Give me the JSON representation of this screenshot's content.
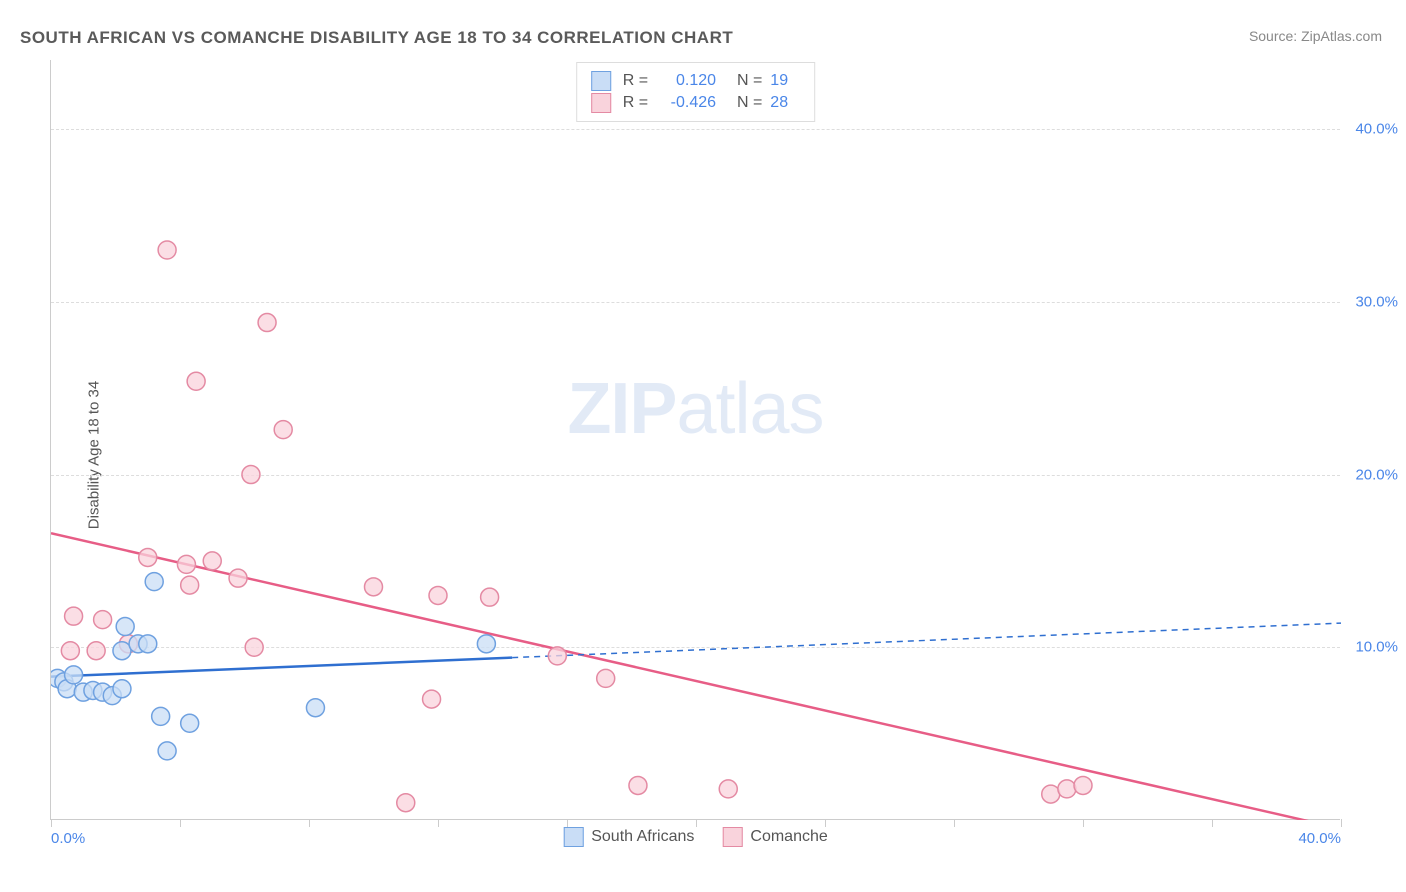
{
  "title": "SOUTH AFRICAN VS COMANCHE DISABILITY AGE 18 TO 34 CORRELATION CHART",
  "source": "Source: ZipAtlas.com",
  "y_axis_label": "Disability Age 18 to 34",
  "watermark_bold": "ZIP",
  "watermark_light": "atlas",
  "chart": {
    "type": "scatter",
    "xlim": [
      0,
      40
    ],
    "ylim": [
      0,
      44
    ],
    "x_ticks": [
      0,
      4,
      8,
      12,
      16,
      20,
      24,
      28,
      32,
      36,
      40
    ],
    "x_tick_labels_shown": {
      "0": "0.0%",
      "40": "40.0%"
    },
    "y_gridlines": [
      10,
      20,
      30,
      40
    ],
    "y_tick_labels": {
      "10": "10.0%",
      "20": "20.0%",
      "30": "30.0%",
      "40": "40.0%"
    },
    "background_color": "#ffffff",
    "grid_color": "#dddddd",
    "axis_color": "#cccccc",
    "marker_radius": 9,
    "marker_stroke_width": 1.5,
    "line_width_solid": 2.5,
    "line_dash": "6,5"
  },
  "series": {
    "south_africans": {
      "label": "South Africans",
      "fill": "#c9ddf6",
      "stroke": "#6fa1e0",
      "line_color": "#2f6fd0",
      "R": "0.120",
      "N": "19",
      "points": [
        [
          0.2,
          8.2
        ],
        [
          0.4,
          8.0
        ],
        [
          0.5,
          7.6
        ],
        [
          0.7,
          8.4
        ],
        [
          1.0,
          7.4
        ],
        [
          1.3,
          7.5
        ],
        [
          1.6,
          7.4
        ],
        [
          1.9,
          7.2
        ],
        [
          2.2,
          7.6
        ],
        [
          2.2,
          9.8
        ],
        [
          2.3,
          11.2
        ],
        [
          2.7,
          10.2
        ],
        [
          3.0,
          10.2
        ],
        [
          3.2,
          13.8
        ],
        [
          3.4,
          6.0
        ],
        [
          3.6,
          4.0
        ],
        [
          4.3,
          5.6
        ],
        [
          8.2,
          6.5
        ],
        [
          13.5,
          10.2
        ]
      ],
      "trend": {
        "x1": 0,
        "y1": 8.3,
        "x2_solid": 14.3,
        "y2_solid": 9.4,
        "x2_dash": 40,
        "y2_dash": 11.4
      }
    },
    "comanche": {
      "label": "Comanche",
      "fill": "#f9d3dc",
      "stroke": "#e48aa3",
      "line_color": "#e75d86",
      "R": "-0.426",
      "N": "28",
      "points": [
        [
          0.6,
          9.8
        ],
        [
          0.7,
          11.8
        ],
        [
          1.4,
          9.8
        ],
        [
          1.6,
          11.6
        ],
        [
          2.4,
          10.2
        ],
        [
          3.0,
          15.2
        ],
        [
          3.6,
          33.0
        ],
        [
          4.2,
          14.8
        ],
        [
          4.3,
          13.6
        ],
        [
          4.5,
          25.4
        ],
        [
          5.0,
          15.0
        ],
        [
          5.8,
          14.0
        ],
        [
          6.2,
          20.0
        ],
        [
          6.3,
          10.0
        ],
        [
          6.7,
          28.8
        ],
        [
          7.2,
          22.6
        ],
        [
          10.0,
          13.5
        ],
        [
          11.0,
          1.0
        ],
        [
          11.8,
          7.0
        ],
        [
          12.0,
          13.0
        ],
        [
          13.6,
          12.9
        ],
        [
          15.7,
          9.5
        ],
        [
          17.2,
          8.2
        ],
        [
          18.2,
          2.0
        ],
        [
          21.0,
          1.8
        ],
        [
          31.0,
          1.5
        ],
        [
          31.5,
          1.8
        ],
        [
          32.0,
          2.0
        ]
      ],
      "trend": {
        "x1": 0,
        "y1": 16.6,
        "x2_solid": 40,
        "y2_solid": -0.5
      }
    }
  },
  "legend_top_rows": [
    {
      "swatch_fill": "#c9ddf6",
      "swatch_stroke": "#6fa1e0",
      "R": "0.120",
      "N": "19"
    },
    {
      "swatch_fill": "#f9d3dc",
      "swatch_stroke": "#e48aa3",
      "R": "-0.426",
      "N": "28"
    }
  ]
}
